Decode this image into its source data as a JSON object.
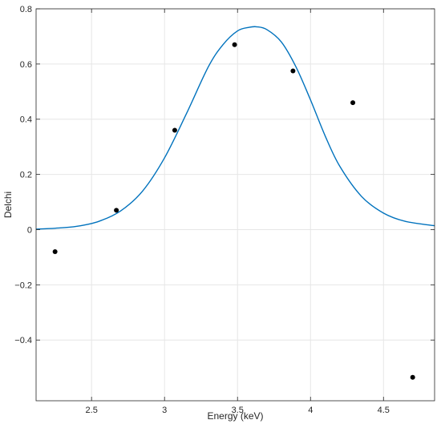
{
  "chart_data": {
    "type": "scatter",
    "xlabel": "Energy (keV)",
    "ylabel": "Delchi",
    "xlim": [
      2.12,
      4.85
    ],
    "ylim": [
      -0.62,
      0.8
    ],
    "grid": true,
    "xticks": [
      2.5,
      3,
      3.5,
      4,
      4.5
    ],
    "yticks": [
      -0.4,
      -0.2,
      0,
      0.2,
      0.4,
      0.6,
      0.8
    ],
    "xtick_labels": [
      "2.5",
      "3",
      "3.5",
      "4",
      "4.5"
    ],
    "ytick_labels": [
      "−0.4",
      "−0.2",
      "0",
      "0.2",
      "0.4",
      "0.6",
      "0.8"
    ],
    "series": [
      {
        "kind": "points",
        "color": "#000000",
        "x": [
          2.25,
          2.67,
          3.07,
          3.48,
          3.88,
          4.29,
          4.7
        ],
        "y": [
          -0.08,
          0.07,
          0.36,
          0.67,
          0.575,
          0.46,
          -0.535
        ]
      },
      {
        "kind": "curve",
        "color": "#0072BD",
        "x": [
          2.12,
          2.25,
          2.4,
          2.55,
          2.7,
          2.85,
          3.0,
          3.15,
          3.3,
          3.4,
          3.5,
          3.58,
          3.63,
          3.7,
          3.8,
          3.9,
          4.0,
          4.1,
          4.2,
          4.35,
          4.5,
          4.65,
          4.85
        ],
        "y": [
          0.002,
          0.005,
          0.012,
          0.03,
          0.068,
          0.14,
          0.26,
          0.42,
          0.59,
          0.67,
          0.72,
          0.733,
          0.735,
          0.725,
          0.68,
          0.59,
          0.47,
          0.34,
          0.23,
          0.12,
          0.06,
          0.03,
          0.014
        ]
      }
    ]
  }
}
